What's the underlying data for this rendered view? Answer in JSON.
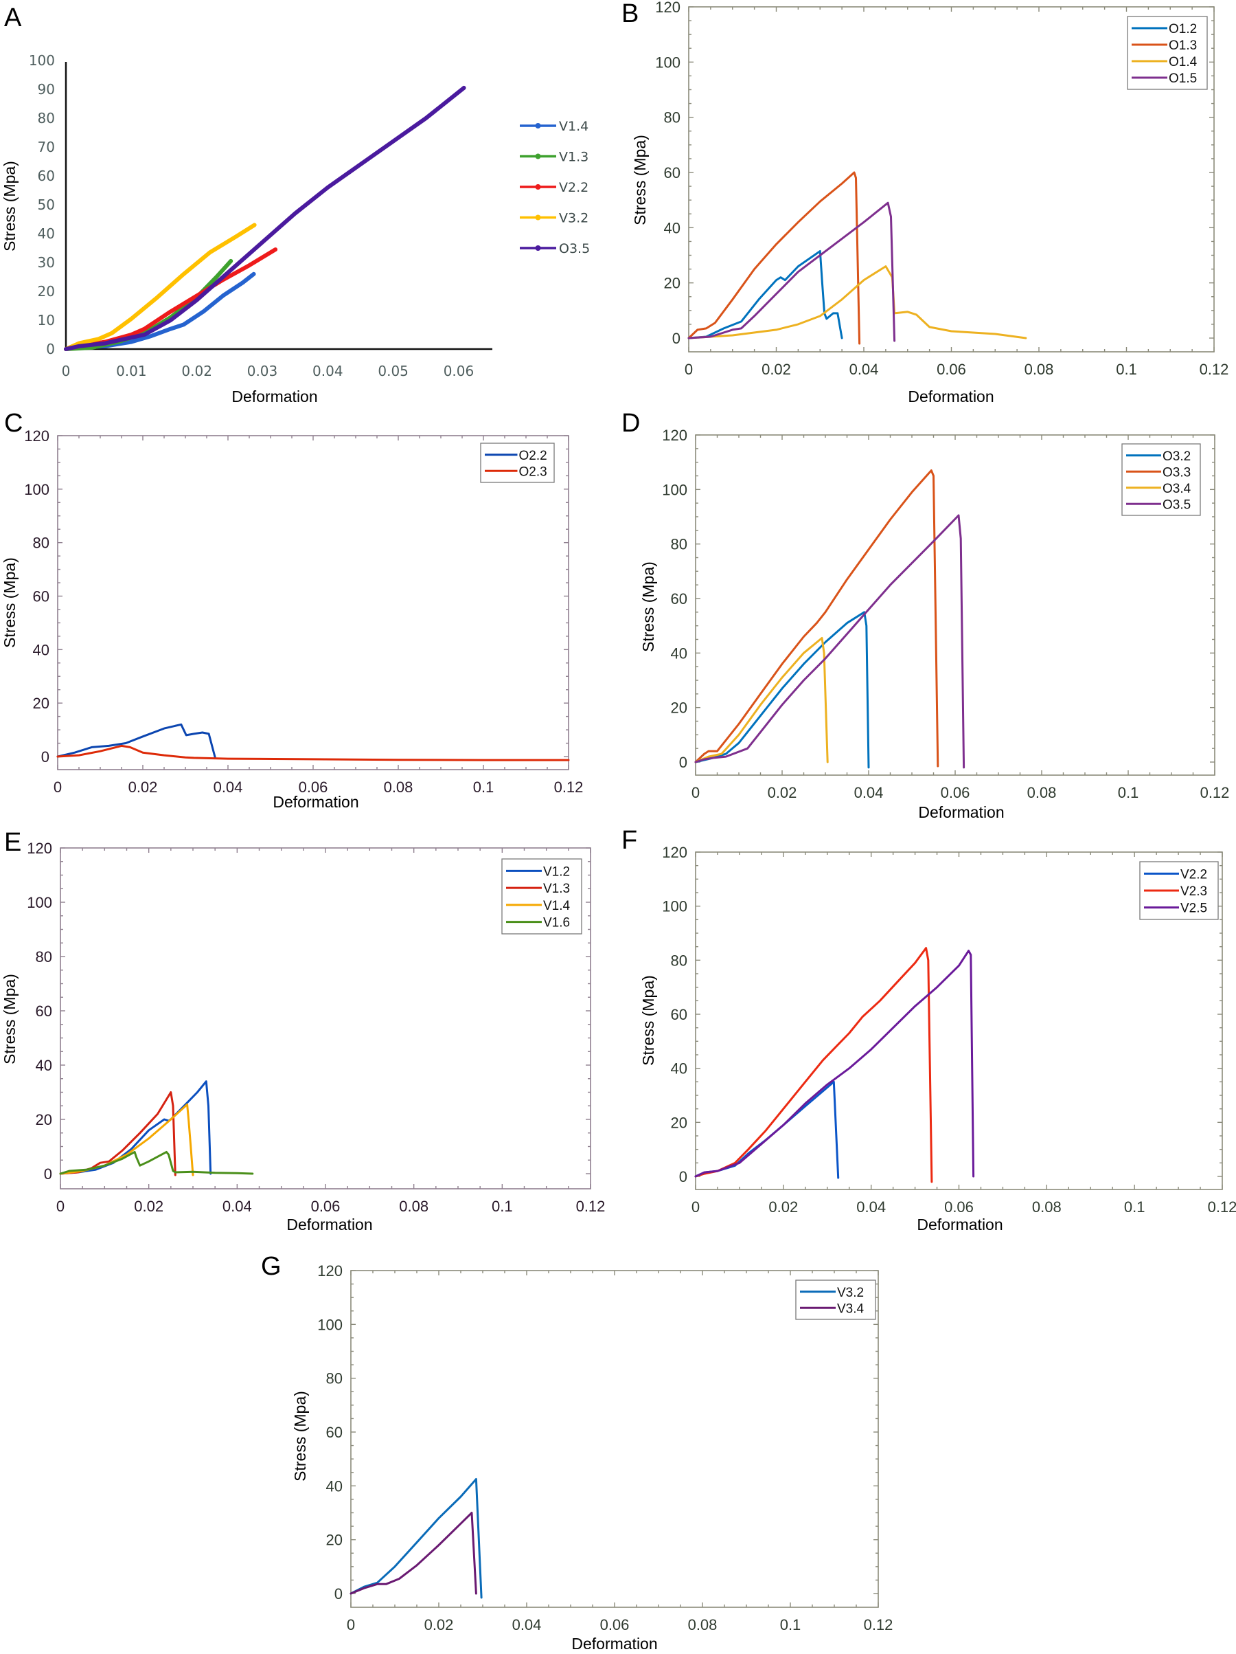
{
  "figure": {
    "panels": [
      "A",
      "B",
      "C",
      "D",
      "E",
      "F",
      "G"
    ]
  },
  "chart_data": [
    {
      "panel": "A",
      "type": "line",
      "title": "",
      "xlabel": "Deformation",
      "ylabel": "Stress (Mpa)",
      "xlim": [
        0,
        0.065
      ],
      "ylim": [
        0,
        100
      ],
      "xticks": [
        "0",
        "0.01",
        "0.02",
        "0.03",
        "0.04",
        "0.05",
        "0.06"
      ],
      "xtick_values": [
        0,
        0.01,
        0.02,
        0.03,
        0.04,
        0.05,
        0.06
      ],
      "yticks": [
        "0",
        "10",
        "20",
        "30",
        "40",
        "50",
        "60",
        "70",
        "80",
        "90",
        "100"
      ],
      "ytick_values": [
        0,
        10,
        20,
        30,
        40,
        50,
        60,
        70,
        80,
        90,
        100
      ],
      "grid": false,
      "legend_position": "right",
      "series": [
        {
          "name": "V1.4",
          "color": "#2563cf",
          "x": [
            0,
            0.002,
            0.006,
            0.01,
            0.013,
            0.016,
            0.018,
            0.021,
            0.024,
            0.027,
            0.0287
          ],
          "y": [
            0,
            0.5,
            1,
            2.5,
            4.5,
            7,
            8.5,
            13,
            18.5,
            23,
            26
          ]
        },
        {
          "name": "V1.3",
          "color": "#3ea12e",
          "x": [
            0,
            0.004,
            0.008,
            0.012,
            0.016,
            0.02,
            0.023,
            0.0252
          ],
          "y": [
            0,
            0.5,
            2.5,
            5.5,
            11,
            18,
            25,
            30.5
          ]
        },
        {
          "name": "V2.2",
          "color": "#ee1b1b",
          "x": [
            0,
            0.002,
            0.006,
            0.01,
            0.012,
            0.016,
            0.02,
            0.024,
            0.028,
            0.032
          ],
          "y": [
            0,
            1,
            2.5,
            5,
            7,
            13,
            18.5,
            24,
            29,
            34.5
          ]
        },
        {
          "name": "V3.2",
          "color": "#ffc000",
          "x": [
            0,
            0.002,
            0.005,
            0.007,
            0.01,
            0.014,
            0.018,
            0.022,
            0.026,
            0.0288
          ],
          "y": [
            0,
            2,
            3.5,
            5.5,
            10.5,
            18,
            26,
            33.5,
            39,
            43
          ]
        },
        {
          "name": "O3.5",
          "color": "#4a1a9e",
          "x": [
            0,
            0.002,
            0.006,
            0.01,
            0.012,
            0.016,
            0.02,
            0.025,
            0.03,
            0.035,
            0.04,
            0.045,
            0.05,
            0.055,
            0.0608
          ],
          "y": [
            0,
            1,
            2,
            4,
            5,
            10,
            17,
            27,
            37,
            47,
            56,
            64,
            72,
            80,
            90.5
          ]
        }
      ]
    },
    {
      "panel": "B",
      "type": "line",
      "title": "",
      "xlabel": "Deformation",
      "ylabel": "Stress (Mpa)",
      "xlim": [
        0,
        0.12
      ],
      "ylim": [
        -5,
        120
      ],
      "xticks": [
        "0",
        "0.02",
        "0.04",
        "0.06",
        "0.08",
        "0.1",
        "0.12"
      ],
      "xtick_values": [
        0,
        0.02,
        0.04,
        0.06,
        0.08,
        0.1,
        0.12
      ],
      "yticks": [
        "0",
        "20",
        "40",
        "60",
        "80",
        "100",
        "120"
      ],
      "ytick_values": [
        0,
        20,
        40,
        60,
        80,
        100,
        120
      ],
      "grid": false,
      "legend_position": "top-right",
      "series": [
        {
          "name": "O1.2",
          "color": "#0072bd",
          "x": [
            0,
            0.004,
            0.008,
            0.012,
            0.016,
            0.02,
            0.021,
            0.022,
            0.025,
            0.03,
            0.0305,
            0.031,
            0.0315,
            0.033,
            0.034,
            0.035
          ],
          "y": [
            0,
            0.5,
            3.5,
            6,
            14,
            21,
            22,
            21,
            26,
            31.5,
            20,
            9,
            7,
            9,
            9,
            0
          ]
        },
        {
          "name": "O1.3",
          "color": "#d95319",
          "x": [
            0,
            0.002,
            0.004,
            0.006,
            0.01,
            0.015,
            0.02,
            0.025,
            0.03,
            0.035,
            0.0378,
            0.0382,
            0.039
          ],
          "y": [
            0,
            3,
            3.5,
            5.5,
            14,
            25,
            34,
            42,
            49.5,
            56,
            60,
            58,
            -2
          ]
        },
        {
          "name": "O1.4",
          "color": "#edb120",
          "x": [
            0,
            0.01,
            0.02,
            0.025,
            0.03,
            0.035,
            0.04,
            0.045,
            0.0465,
            0.047,
            0.05,
            0.052,
            0.055,
            0.06,
            0.07,
            0.077
          ],
          "y": [
            0,
            1,
            3,
            5,
            8,
            14,
            21,
            26,
            22,
            9,
            9.5,
            8.5,
            4,
            2.5,
            1.5,
            0
          ]
        },
        {
          "name": "O1.5",
          "color": "#7e2f8e",
          "x": [
            0,
            0.005,
            0.01,
            0.012,
            0.015,
            0.02,
            0.025,
            0.03,
            0.035,
            0.04,
            0.0455,
            0.0462,
            0.047
          ],
          "y": [
            0,
            0.5,
            3,
            3.5,
            8,
            16,
            24,
            30,
            36,
            42,
            49,
            44,
            -1
          ]
        }
      ]
    },
    {
      "panel": "C",
      "type": "line",
      "title": "",
      "xlabel": "Deformation",
      "ylabel": "Stress (Mpa)",
      "xlim": [
        0,
        0.12
      ],
      "ylim": [
        -5,
        120
      ],
      "xticks": [
        "0",
        "0.02",
        "0.04",
        "0.06",
        "0.08",
        "0.1",
        "0.12"
      ],
      "xtick_values": [
        0,
        0.02,
        0.04,
        0.06,
        0.08,
        0.1,
        0.12
      ],
      "yticks": [
        "0",
        "20",
        "40",
        "60",
        "80",
        "100",
        "120"
      ],
      "ytick_values": [
        0,
        20,
        40,
        60,
        80,
        100,
        120
      ],
      "grid": false,
      "legend_position": "top-right",
      "series": [
        {
          "name": "O2.2",
          "color": "#0b45b0",
          "x": [
            0,
            0.004,
            0.008,
            0.012,
            0.016,
            0.02,
            0.025,
            0.029,
            0.0302,
            0.032,
            0.034,
            0.0355,
            0.037
          ],
          "y": [
            0,
            1.5,
            3.5,
            4,
            5,
            7.5,
            10.5,
            12,
            8,
            8.5,
            9,
            8.5,
            -0.5
          ]
        },
        {
          "name": "O2.3",
          "color": "#dd2a08",
          "x": [
            0,
            0.005,
            0.01,
            0.015,
            0.017,
            0.02,
            0.025,
            0.03,
            0.032,
            0.04,
            0.06,
            0.08,
            0.1,
            0.12
          ],
          "y": [
            0,
            0.5,
            2,
            4,
            3.5,
            1.5,
            0.5,
            -0.3,
            -0.5,
            -0.8,
            -1,
            -1.2,
            -1.3,
            -1.3
          ]
        }
      ]
    },
    {
      "panel": "D",
      "type": "line",
      "title": "",
      "xlabel": "Deformation",
      "ylabel": "Stress (Mpa)",
      "xlim": [
        0,
        0.12
      ],
      "ylim": [
        -5,
        120
      ],
      "xticks": [
        "0",
        "0.02",
        "0.04",
        "0.06",
        "0.08",
        "0.1",
        "0.12"
      ],
      "xtick_values": [
        0,
        0.02,
        0.04,
        0.06,
        0.08,
        0.1,
        0.12
      ],
      "yticks": [
        "0",
        "20",
        "40",
        "60",
        "80",
        "100",
        "120"
      ],
      "ytick_values": [
        0,
        20,
        40,
        60,
        80,
        100,
        120
      ],
      "grid": false,
      "legend_position": "top-right",
      "series": [
        {
          "name": "O3.2",
          "color": "#0072bd",
          "x": [
            0,
            0.004,
            0.007,
            0.01,
            0.015,
            0.02,
            0.025,
            0.03,
            0.035,
            0.039,
            0.0395,
            0.04
          ],
          "y": [
            0,
            1.5,
            3,
            7,
            17,
            27,
            36,
            44,
            51,
            55,
            50,
            -2
          ]
        },
        {
          "name": "O3.3",
          "color": "#d95319",
          "x": [
            0,
            0.002,
            0.003,
            0.005,
            0.01,
            0.015,
            0.02,
            0.025,
            0.028,
            0.03,
            0.035,
            0.04,
            0.045,
            0.05,
            0.0545,
            0.055,
            0.056
          ],
          "y": [
            0,
            3,
            4,
            4,
            14,
            25,
            36,
            46,
            51,
            55,
            67,
            78,
            89,
            99,
            107,
            105,
            -1.5
          ]
        },
        {
          "name": "O3.4",
          "color": "#edb120",
          "x": [
            0,
            0.003,
            0.006,
            0.01,
            0.015,
            0.02,
            0.025,
            0.0292,
            0.0297,
            0.0305
          ],
          "y": [
            0,
            2,
            3,
            10,
            21,
            31,
            40,
            45.5,
            40,
            0
          ]
        },
        {
          "name": "O3.5",
          "color": "#7e2f8e",
          "x": [
            0,
            0.002,
            0.004,
            0.007,
            0.012,
            0.015,
            0.02,
            0.025,
            0.03,
            0.035,
            0.04,
            0.045,
            0.05,
            0.055,
            0.0608,
            0.0613,
            0.062
          ],
          "y": [
            0,
            1,
            1.5,
            2,
            5,
            11,
            21,
            30,
            38,
            47,
            56,
            65,
            73,
            81,
            90.5,
            82,
            -2
          ]
        }
      ]
    },
    {
      "panel": "E",
      "type": "line",
      "title": "",
      "xlabel": "Deformation",
      "ylabel": "Stress (Mpa)",
      "xlim": [
        0,
        0.12
      ],
      "ylim": [
        -5,
        120
      ],
      "xticks": [
        "0",
        "0.02",
        "0.04",
        "0.06",
        "0.08",
        "0.1",
        "0.12"
      ],
      "xtick_values": [
        0,
        0.02,
        0.04,
        0.06,
        0.08,
        0.1,
        0.12
      ],
      "yticks": [
        "0",
        "20",
        "40",
        "60",
        "80",
        "100",
        "120"
      ],
      "ytick_values": [
        0,
        20,
        40,
        60,
        80,
        100,
        120
      ],
      "grid": false,
      "legend_position": "top-right",
      "series": [
        {
          "name": "V1.2",
          "color": "#0b4fbf",
          "x": [
            0,
            0.004,
            0.008,
            0.012,
            0.016,
            0.02,
            0.0235,
            0.0245,
            0.025,
            0.028,
            0.031,
            0.033,
            0.0335,
            0.034
          ],
          "y": [
            0,
            0.5,
            1.5,
            4,
            9,
            16,
            20,
            19.5,
            20,
            25,
            30,
            34,
            25,
            0
          ]
        },
        {
          "name": "V1.3",
          "color": "#d52211",
          "x": [
            0,
            0.004,
            0.007,
            0.009,
            0.011,
            0.014,
            0.018,
            0.022,
            0.025,
            0.0255,
            0.026
          ],
          "y": [
            0,
            0.5,
            2,
            4,
            4.5,
            8.5,
            15,
            22,
            30,
            25,
            -0.5
          ]
        },
        {
          "name": "V1.4",
          "color": "#f5a800",
          "x": [
            0,
            0.005,
            0.01,
            0.015,
            0.02,
            0.025,
            0.0287,
            0.029,
            0.0295,
            0.03
          ],
          "y": [
            0,
            1,
            3,
            7,
            13,
            20,
            25.5,
            20,
            10,
            -0.5
          ]
        },
        {
          "name": "V1.6",
          "color": "#4a8f1a",
          "x": [
            0,
            0.002,
            0.006,
            0.01,
            0.014,
            0.0168,
            0.0172,
            0.018,
            0.02,
            0.024,
            0.0245,
            0.0255,
            0.026,
            0.03,
            0.035,
            0.04,
            0.0435
          ],
          "y": [
            0,
            1,
            1.5,
            3,
            5.5,
            8,
            6,
            3,
            4.5,
            8,
            7,
            1,
            0.5,
            0.7,
            0.3,
            0.2,
            0
          ]
        }
      ]
    },
    {
      "panel": "F",
      "type": "line",
      "title": "",
      "xlabel": "Deformation",
      "ylabel": "Stress (Mpa)",
      "xlim": [
        0,
        0.12
      ],
      "ylim": [
        -5,
        120
      ],
      "xticks": [
        "0",
        "0.02",
        "0.04",
        "0.06",
        "0.08",
        "0.1",
        "0.12"
      ],
      "xtick_values": [
        0,
        0.02,
        0.04,
        0.06,
        0.08,
        0.1,
        0.12
      ],
      "yticks": [
        "0",
        "20",
        "40",
        "60",
        "80",
        "100",
        "120"
      ],
      "ytick_values": [
        0,
        20,
        40,
        60,
        80,
        100,
        120
      ],
      "grid": false,
      "legend_position": "top-right",
      "series": [
        {
          "name": "V2.2",
          "color": "#0b55c8",
          "x": [
            0,
            0.002,
            0.005,
            0.009,
            0.012,
            0.016,
            0.02,
            0.025,
            0.0315,
            0.0325
          ],
          "y": [
            0,
            1.5,
            2,
            4,
            8.5,
            13.5,
            19,
            26,
            35,
            -0.5
          ]
        },
        {
          "name": "V2.3",
          "color": "#ec2a12",
          "x": [
            0,
            0.002,
            0.005,
            0.009,
            0.012,
            0.016,
            0.02,
            0.025,
            0.029,
            0.032,
            0.035,
            0.038,
            0.042,
            0.046,
            0.05,
            0.0525,
            0.053,
            0.0538
          ],
          "y": [
            0,
            1,
            2,
            5,
            10,
            17,
            25,
            35,
            43,
            48,
            53,
            59,
            65,
            72,
            79,
            84.5,
            80,
            -2
          ]
        },
        {
          "name": "V2.5",
          "color": "#6a1a9a",
          "x": [
            0,
            0.002,
            0.005,
            0.01,
            0.015,
            0.02,
            0.025,
            0.03,
            0.035,
            0.04,
            0.045,
            0.05,
            0.055,
            0.06,
            0.0622,
            0.0627,
            0.0633
          ],
          "y": [
            0,
            1.5,
            2,
            5,
            12,
            19,
            27,
            34,
            40,
            47,
            55,
            63,
            70,
            78,
            83.5,
            82,
            0
          ]
        }
      ]
    },
    {
      "panel": "G",
      "type": "line",
      "title": "",
      "xlabel": "Deformation",
      "ylabel": "Stress (Mpa)",
      "xlim": [
        0,
        0.12
      ],
      "ylim": [
        -5,
        120
      ],
      "xticks": [
        "0",
        "0.02",
        "0.04",
        "0.06",
        "0.08",
        "0.1",
        "0.12"
      ],
      "xtick_values": [
        0,
        0.02,
        0.04,
        0.06,
        0.08,
        0.1,
        0.12
      ],
      "yticks": [
        "0",
        "20",
        "40",
        "60",
        "80",
        "100",
        "120"
      ],
      "ytick_values": [
        0,
        20,
        40,
        60,
        80,
        100,
        120
      ],
      "grid": false,
      "legend_position": "top-right",
      "series": [
        {
          "name": "V3.2",
          "color": "#0a6bb8",
          "x": [
            0,
            0.003,
            0.006,
            0.01,
            0.015,
            0.02,
            0.025,
            0.0285,
            0.0297
          ],
          "y": [
            0,
            2.5,
            4,
            10,
            19,
            28,
            36,
            42.5,
            -1.5
          ]
        },
        {
          "name": "V3.4",
          "color": "#6a1a72",
          "x": [
            0,
            0.003,
            0.006,
            0.008,
            0.011,
            0.015,
            0.02,
            0.025,
            0.0275,
            0.0285
          ],
          "y": [
            0,
            2,
            3.5,
            3.5,
            5.5,
            10.5,
            18,
            26,
            30,
            0
          ]
        }
      ]
    }
  ]
}
